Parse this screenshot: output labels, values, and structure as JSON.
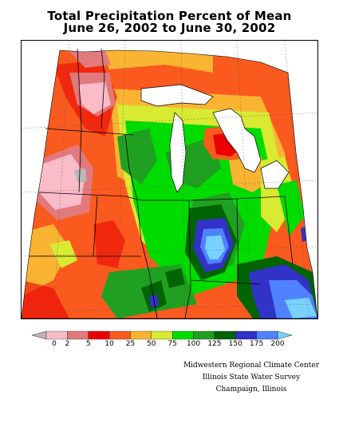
{
  "title": {
    "line1": "Total Precipitation Percent of Mean",
    "line2": "June 26, 2002 to June 30, 2002"
  },
  "legend": {
    "labels": [
      "0",
      "2",
      "5",
      "10",
      "25",
      "50",
      "75",
      "100",
      "125",
      "150",
      "175",
      "200"
    ],
    "colors": [
      "#b8b8b8",
      "#fabcc8",
      "#e2797c",
      "#ea0000",
      "#fa5a1e",
      "#fab432",
      "#d8ea32",
      "#00dc00",
      "#20a020",
      "#006400",
      "#3232c8",
      "#5082ff",
      "#78d2ff"
    ]
  },
  "credits": {
    "line1": "Midwestern Regional Climate Center",
    "line2": "Illinois State Water Survey",
    "line3": "Champaign, Illinois"
  }
}
